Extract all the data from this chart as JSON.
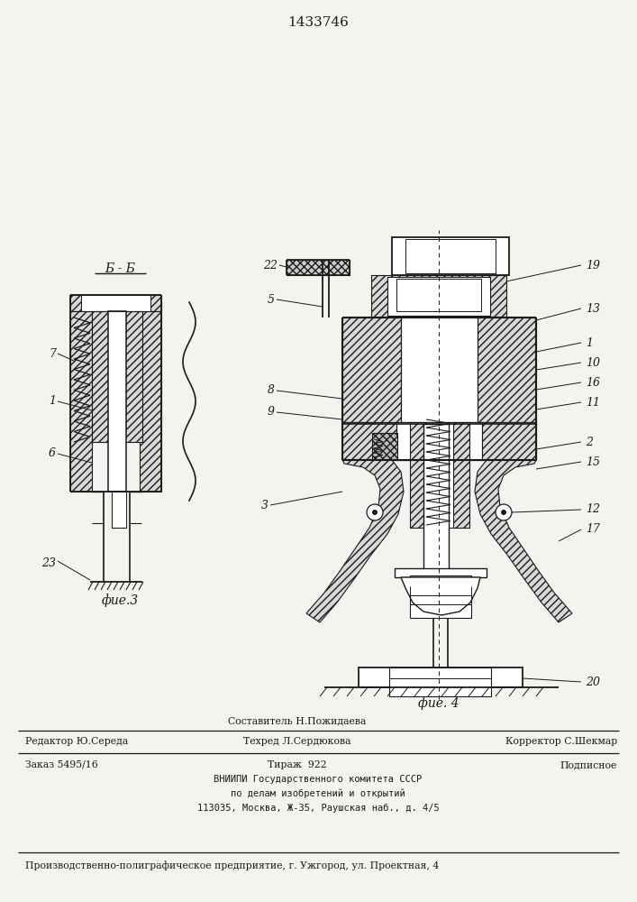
{
  "patent_number": "1433746",
  "bg_color": "#f5f3ef",
  "line_color": "#1a1a1a",
  "fig3_label": "фие.3",
  "fig4_label": "фие. 4",
  "fig3_section_label": "Б - Б",
  "footer": {
    "line1_center_top": "Составитель Н.Пожидаева",
    "line1_left": "Редактор Ю.Середа",
    "line1_center_bot": "Техред Л.Сердюкова",
    "line1_right": "Корректор С.Шекмар",
    "line2_left": "Заказ 5495/16",
    "line2_center": "Тираж  922",
    "line2_right": "Подписное",
    "line3": "ВНИИПИ Государственного комитета СССР",
    "line4": "по делам изобретений и открытий",
    "line5": "113035, Москва, Ж-35, Раушская наб., д. 4/5",
    "line6": "Производственно-полиграфическое предприятие, г. Ужгород, ул. Проектная, 4"
  }
}
